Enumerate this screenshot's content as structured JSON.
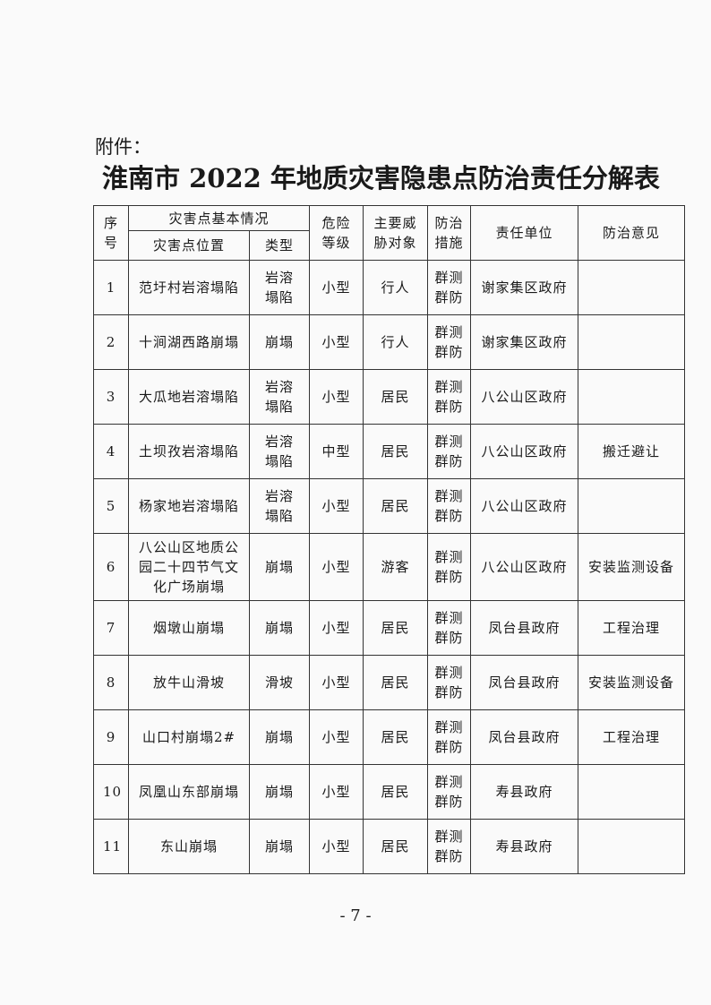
{
  "attachment_label": "附件：",
  "title": "淮南市 2022 年地质灾害隐患点防治责任分解表",
  "headers": {
    "no": "序号",
    "basic": "灾害点基本情况",
    "location": "灾害点位置",
    "type": "类型",
    "level": "危险等级",
    "threat": "主要威胁对象",
    "measure": "防治措施",
    "unit": "责任单位",
    "opinion": "防治意见"
  },
  "rows": [
    {
      "no": "1",
      "location": "范圩村岩溶塌陷",
      "type": "岩溶塌陷",
      "level": "小型",
      "threat": "行人",
      "measure": "群测群防",
      "unit": "谢家集区政府",
      "opinion": ""
    },
    {
      "no": "2",
      "location": "十涧湖西路崩塌",
      "type": "崩塌",
      "level": "小型",
      "threat": "行人",
      "measure": "群测群防",
      "unit": "谢家集区政府",
      "opinion": ""
    },
    {
      "no": "3",
      "location": "大瓜地岩溶塌陷",
      "type": "岩溶塌陷",
      "level": "小型",
      "threat": "居民",
      "measure": "群测群防",
      "unit": "八公山区政府",
      "opinion": ""
    },
    {
      "no": "4",
      "location": "土坝孜岩溶塌陷",
      "type": "岩溶塌陷",
      "level": "中型",
      "threat": "居民",
      "measure": "群测群防",
      "unit": "八公山区政府",
      "opinion": "搬迁避让"
    },
    {
      "no": "5",
      "location": "杨家地岩溶塌陷",
      "type": "岩溶塌陷",
      "level": "小型",
      "threat": "居民",
      "measure": "群测群防",
      "unit": "八公山区政府",
      "opinion": ""
    },
    {
      "no": "6",
      "location": "八公山区地质公园二十四节气文化广场崩塌",
      "type": "崩塌",
      "level": "小型",
      "threat": "游客",
      "measure": "群测群防",
      "unit": "八公山区政府",
      "opinion": "安装监测设备"
    },
    {
      "no": "7",
      "location": "烟墩山崩塌",
      "type": "崩塌",
      "level": "小型",
      "threat": "居民",
      "measure": "群测群防",
      "unit": "凤台县政府",
      "opinion": "工程治理"
    },
    {
      "no": "8",
      "location": "放牛山滑坡",
      "type": "滑坡",
      "level": "小型",
      "threat": "居民",
      "measure": "群测群防",
      "unit": "凤台县政府",
      "opinion": "安装监测设备"
    },
    {
      "no": "9",
      "location": "山口村崩塌2#",
      "type": "崩塌",
      "level": "小型",
      "threat": "居民",
      "measure": "群测群防",
      "unit": "凤台县政府",
      "opinion": "工程治理"
    },
    {
      "no": "10",
      "location": "凤凰山东部崩塌",
      "type": "崩塌",
      "level": "小型",
      "threat": "居民",
      "measure": "群测群防",
      "unit": "寿县政府",
      "opinion": ""
    },
    {
      "no": "11",
      "location": "东山崩塌",
      "type": "崩塌",
      "level": "小型",
      "threat": "居民",
      "measure": "群测群防",
      "unit": "寿县政府",
      "opinion": ""
    }
  ],
  "page_number": "- 7 -"
}
